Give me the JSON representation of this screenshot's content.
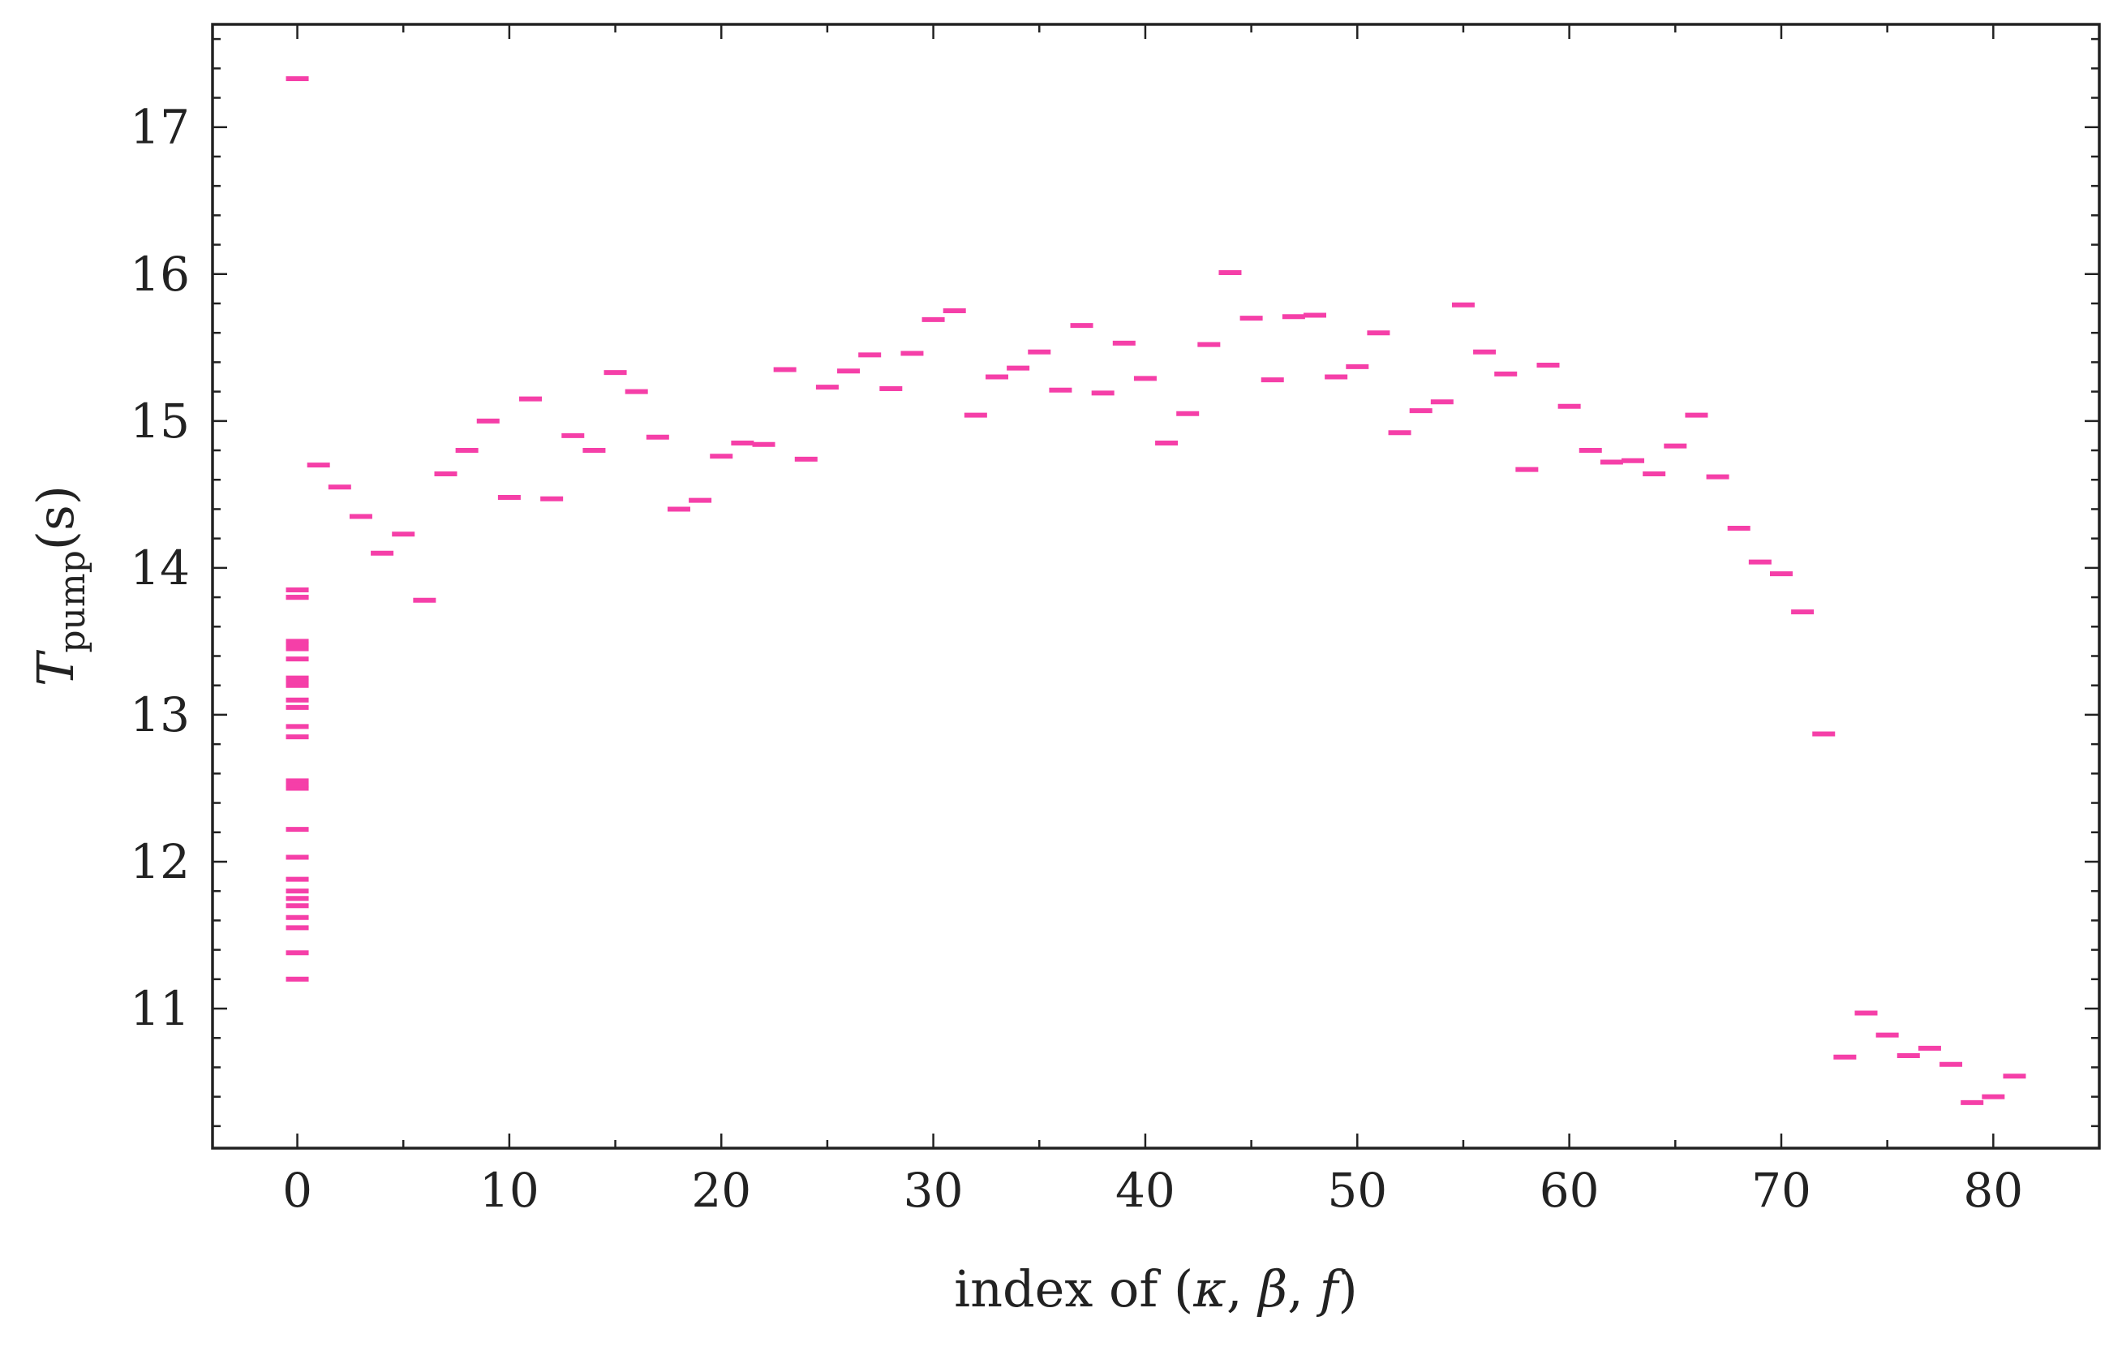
{
  "chart_data": {
    "type": "scatter",
    "title": "",
    "xlabel": {
      "prefix": "index of ",
      "lparen": "(",
      "kappa": "κ",
      "sep1": ", ",
      "beta": "β",
      "sep2": ", ",
      "f": "f",
      "rparen": ")"
    },
    "ylabel": {
      "var": "T",
      "sub": "pump",
      "unit": "(s)"
    },
    "xlim": [
      -4,
      85
    ],
    "ylim": [
      10.05,
      17.7
    ],
    "xticks": [
      0,
      10,
      20,
      30,
      40,
      50,
      60,
      70,
      80
    ],
    "xtick_labels": [
      "0",
      "10",
      "20",
      "30",
      "40",
      "50",
      "60",
      "70",
      "80"
    ],
    "yticks": [
      11,
      12,
      13,
      14,
      15,
      16,
      17
    ],
    "ytick_labels": [
      "11",
      "12",
      "13",
      "14",
      "15",
      "16",
      "17"
    ],
    "marker": "hline",
    "color": "#f53fa8",
    "grid": false,
    "series": [
      {
        "x": [
          0,
          0,
          0,
          0,
          0,
          0,
          0,
          0,
          0,
          0,
          0,
          0,
          0,
          0,
          0,
          0,
          0,
          0,
          0,
          0,
          0,
          0,
          0,
          0,
          0,
          0,
          0,
          0,
          1,
          2,
          3,
          4,
          5,
          6,
          7,
          8,
          9,
          10,
          11,
          12,
          13,
          14,
          15,
          16,
          17,
          18,
          19,
          20,
          21,
          22,
          23,
          24,
          25,
          26,
          27,
          28,
          29,
          30,
          31,
          32,
          33,
          34,
          35,
          36,
          37,
          38,
          39,
          40,
          41,
          42,
          43,
          44,
          45,
          46,
          47,
          48,
          49,
          50,
          51,
          52,
          53,
          54,
          55,
          56,
          57,
          58,
          59,
          60,
          61,
          62,
          63,
          64,
          65,
          66,
          67,
          68,
          69,
          70,
          71,
          72,
          73,
          74,
          75,
          76,
          77,
          78,
          79,
          80,
          81
        ],
        "y": [
          17.33,
          13.85,
          13.8,
          13.5,
          13.45,
          13.38,
          13.25,
          13.2,
          13.1,
          13.05,
          12.92,
          12.85,
          12.55,
          12.5,
          12.22,
          12.03,
          11.88,
          11.8,
          11.75,
          11.7,
          11.62,
          11.55,
          11.38,
          11.2,
          12.52,
          13.23,
          13.48,
          13.8,
          14.7,
          14.55,
          14.35,
          14.1,
          14.23,
          13.78,
          14.64,
          14.8,
          15.0,
          14.48,
          15.15,
          14.47,
          14.9,
          14.8,
          15.33,
          15.2,
          14.89,
          14.4,
          14.46,
          14.76,
          14.85,
          14.84,
          15.35,
          14.74,
          15.23,
          15.34,
          15.45,
          15.22,
          15.46,
          15.69,
          15.75,
          15.04,
          15.3,
          15.36,
          15.47,
          15.21,
          15.65,
          15.19,
          15.53,
          15.29,
          14.85,
          15.05,
          15.52,
          16.01,
          15.7,
          15.28,
          15.71,
          15.72,
          15.3,
          15.37,
          15.6,
          14.92,
          15.07,
          15.13,
          15.79,
          15.47,
          15.32,
          14.67,
          15.38,
          15.1,
          14.8,
          14.72,
          14.73,
          14.64,
          14.83,
          15.04,
          14.62,
          14.27,
          14.04,
          13.96,
          13.7,
          12.87,
          10.67,
          10.97,
          10.82,
          10.68,
          10.73,
          10.62,
          10.36,
          10.4,
          10.54
        ]
      }
    ]
  }
}
